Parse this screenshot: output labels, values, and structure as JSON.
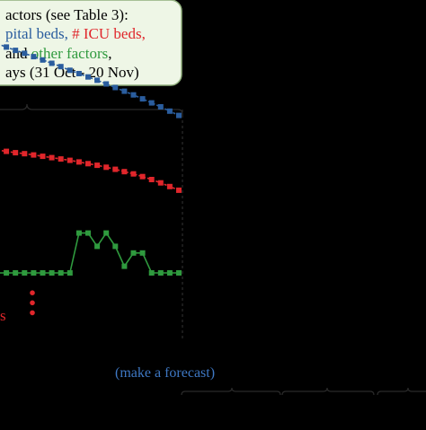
{
  "colors": {
    "background": "#000000",
    "callout_fill": "#eef6e6",
    "callout_border": "#8fae7c",
    "hospital": "#2a5d9e",
    "icu": "#e0262b",
    "other": "#2f9a3e",
    "forecast": "#3e78c4",
    "line": "#2b2b2b"
  },
  "callout": {
    "line1": "actors (see Table 3):",
    "line2_a": "pital beds, ",
    "line2_b": "# ICU beds,",
    "line3_a": "and ",
    "line3_b": "other factors",
    "line3_c": ",",
    "line4": "ays (31 Oct - 20 Nov)"
  },
  "left_fragment": "s",
  "forecast_label": "(make a forecast)",
  "chart_data": {
    "type": "line",
    "x": [
      1,
      2,
      3,
      4,
      5,
      6,
      7,
      8,
      9,
      10,
      11,
      12,
      13,
      14,
      15,
      16,
      17,
      18,
      19,
      20,
      21
    ],
    "ylim": [
      0,
      100
    ],
    "series": [
      {
        "key": "hospital",
        "values": [
          89.0,
          88.0,
          87.0,
          86.1,
          85.1,
          84.1,
          83.1,
          82.1,
          81.0,
          80.0,
          79.0,
          78.0,
          76.9,
          75.8,
          74.7,
          73.6,
          72.4,
          71.2,
          70.0,
          68.7,
          67.4
        ]
      },
      {
        "key": "icu",
        "values": [
          57.0,
          56.6,
          56.2,
          55.9,
          55.5,
          55.1,
          54.7,
          54.3,
          53.9,
          53.4,
          52.9,
          52.4,
          51.8,
          51.2,
          50.5,
          49.8,
          49.0,
          48.1,
          47.1,
          46.0,
          44.9
        ]
      },
      {
        "key": "other",
        "values": [
          20.0,
          20.0,
          20.0,
          20.0,
          20.0,
          20.0,
          20.0,
          20.0,
          20.0,
          32.0,
          32.0,
          28.0,
          32.0,
          28.0,
          22.0,
          26.0,
          26.0,
          20.0,
          20.0,
          20.0,
          20.0
        ]
      }
    ],
    "dots": [
      14,
      11,
      8
    ]
  }
}
